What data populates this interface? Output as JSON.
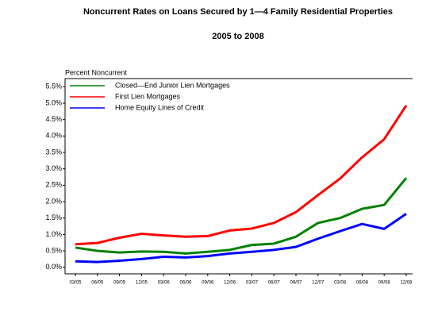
{
  "chart_data": {
    "type": "line",
    "title": "Noncurrent Rates on Loans Secured by 1—4 Family Residential Properties",
    "subtitle": "2005 to 2008",
    "y_label": "Percent Noncurrent",
    "categories": [
      "03/05",
      "06/05",
      "09/05",
      "12/05",
      "03/06",
      "06/06",
      "09/06",
      "12/06",
      "03/07",
      "06/07",
      "09/07",
      "12/07",
      "03/08",
      "06/08",
      "09/08",
      "12/08"
    ],
    "series": [
      {
        "name": "Closed—End Junior Lien Mortgages",
        "color": "#008000",
        "values": [
          0.6,
          0.5,
          0.45,
          0.48,
          0.47,
          0.42,
          0.47,
          0.53,
          0.68,
          0.72,
          0.93,
          1.35,
          1.5,
          1.78,
          1.9,
          2.72
        ]
      },
      {
        "name": "First Lien Mortgages",
        "color": "#ff0000",
        "values": [
          0.7,
          0.74,
          0.9,
          1.02,
          0.97,
          0.93,
          0.95,
          1.12,
          1.18,
          1.35,
          1.68,
          2.2,
          2.7,
          3.35,
          3.9,
          4.93
        ]
      },
      {
        "name": "Home Equity Lines of Credit",
        "color": "#0000ff",
        "values": [
          0.18,
          0.16,
          0.2,
          0.25,
          0.32,
          0.3,
          0.34,
          0.42,
          0.47,
          0.53,
          0.62,
          0.87,
          1.1,
          1.32,
          1.17,
          1.63
        ]
      }
    ],
    "ylim": [
      -0.2,
      5.75
    ],
    "yticks": [
      {
        "value": 0,
        "label": "0.0%"
      },
      {
        "value": 0.5,
        "label": "0.5%"
      },
      {
        "value": 1,
        "label": "1.0%"
      },
      {
        "value": 1.5,
        "label": "1.5%"
      },
      {
        "value": 2,
        "label": "2.0%"
      },
      {
        "value": 2.5,
        "label": "2.5%"
      },
      {
        "value": 3,
        "label": "3.0%"
      },
      {
        "value": 3.5,
        "label": "3.5%"
      },
      {
        "value": 4,
        "label": "4.0%"
      },
      {
        "value": 4.5,
        "label": "4.5%"
      },
      {
        "value": 5,
        "label": "5.0%"
      },
      {
        "value": 5.5,
        "label": "5.5%"
      }
    ],
    "legend": "upper left"
  }
}
